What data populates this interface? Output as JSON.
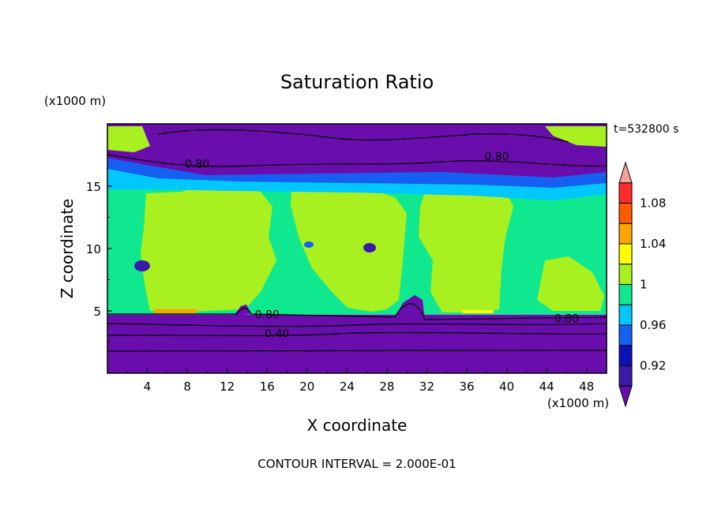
{
  "chart_data": {
    "type": "heatmap",
    "title": "Saturation Ratio",
    "xlabel": "X coordinate",
    "ylabel": "Z coordinate",
    "x_unit": "(x1000 m)",
    "y_unit": "(x1000 m)",
    "time_label": "t=532800 s",
    "footer": "CONTOUR INTERVAL = 2.000E-01",
    "xlim": [
      0,
      50
    ],
    "ylim": [
      0,
      20
    ],
    "x_ticks": [
      "4",
      "8",
      "12",
      "16",
      "20",
      "24",
      "28",
      "32",
      "36",
      "40",
      "44",
      "48"
    ],
    "y_ticks": [
      "5",
      "10",
      "15"
    ],
    "contour_labels": [
      {
        "text": "0.80",
        "x": 9,
        "z": 16.8
      },
      {
        "text": "0.80",
        "x": 39,
        "z": 17.4
      },
      {
        "text": "0.80",
        "x": 16,
        "z": 4.7
      },
      {
        "text": "0.80",
        "x": 46,
        "z": 4.4
      },
      {
        "text": "0.40",
        "x": 17,
        "z": 3.2
      }
    ],
    "colorbar": {
      "labels": [
        "1.08",
        "1.04",
        "1",
        "0.96",
        "0.92"
      ],
      "bins": [
        {
          "from": 0.88,
          "to": 0.9,
          "color": "#6a0dad"
        },
        {
          "from": 0.9,
          "to": 0.92,
          "color": "#3a1aa8"
        },
        {
          "from": 0.92,
          "to": 0.94,
          "color": "#1010b8"
        },
        {
          "from": 0.94,
          "to": 0.96,
          "color": "#1560f0"
        },
        {
          "from": 0.96,
          "to": 0.98,
          "color": "#00c8ff"
        },
        {
          "from": 0.98,
          "to": 1.0,
          "color": "#10e890"
        },
        {
          "from": 1.0,
          "to": 1.02,
          "color": "#a8f020"
        },
        {
          "from": 1.02,
          "to": 1.04,
          "color": "#ffff00"
        },
        {
          "from": 1.04,
          "to": 1.06,
          "color": "#ffa500"
        },
        {
          "from": 1.06,
          "to": 1.08,
          "color": "#ff5a00"
        },
        {
          "from": 1.08,
          "to": 1.1,
          "color": "#ff2a2a"
        },
        {
          "from": 1.1,
          "to": 1.12,
          "color": "#f5a0a0"
        }
      ]
    },
    "regions": [
      {
        "zmin": 0,
        "zmax": 4.7,
        "value": 0.6,
        "color": "#6a0dad"
      },
      {
        "zmin": 4.7,
        "zmax": 14.8,
        "value": 0.99,
        "color": "#10e890"
      },
      {
        "zmin": 14.8,
        "zmax": 15.6,
        "value": 0.94,
        "color": "#1560f0"
      },
      {
        "zmin": 15.6,
        "zmax": 20,
        "value": 0.75,
        "color": "#6a0dad"
      }
    ]
  }
}
